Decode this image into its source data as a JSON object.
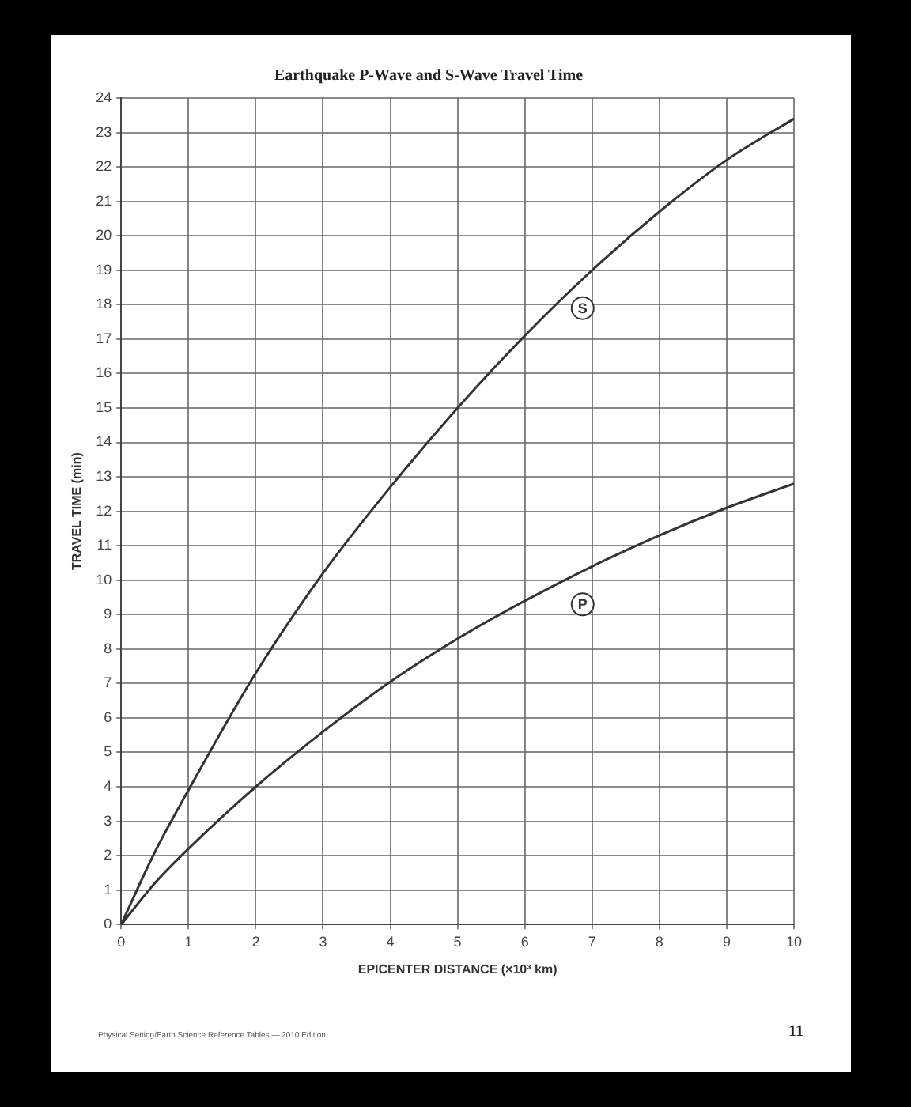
{
  "chart_data": {
    "type": "line",
    "title": "Earthquake P-Wave and S-Wave Travel Time",
    "xlabel": "EPICENTER DISTANCE (×10³ km)",
    "ylabel": "TRAVEL TIME (min)",
    "x": [
      0,
      0.5,
      1,
      2,
      3,
      4,
      5,
      6,
      7,
      8,
      9,
      10
    ],
    "series": [
      {
        "name": "S",
        "color": "#333333",
        "values": [
          0,
          2.1,
          3.9,
          7.3,
          10.2,
          12.7,
          15.0,
          17.1,
          19.0,
          20.7,
          22.2,
          23.4
        ]
      },
      {
        "name": "P",
        "color": "#333333",
        "values": [
          0,
          1.2,
          2.2,
          4.0,
          5.6,
          7.05,
          8.3,
          9.4,
          10.4,
          11.3,
          12.1,
          12.8
        ]
      }
    ],
    "xlim": [
      0,
      10
    ],
    "xticks": [
      0,
      1,
      2,
      3,
      4,
      5,
      6,
      7,
      8,
      9,
      10
    ],
    "ylim": [
      0,
      24
    ],
    "yticks": [
      0,
      1,
      2,
      3,
      4,
      5,
      6,
      7,
      8,
      9,
      10,
      11,
      12,
      13,
      14,
      15,
      16,
      17,
      18,
      19,
      20,
      21,
      22,
      23,
      24
    ],
    "grid": true,
    "legend": false,
    "marker": "none",
    "line_style": "solid",
    "annotations": [
      "Physical Setting/Earth Science Reference Tables — 2010 Edition",
      "11"
    ]
  }
}
